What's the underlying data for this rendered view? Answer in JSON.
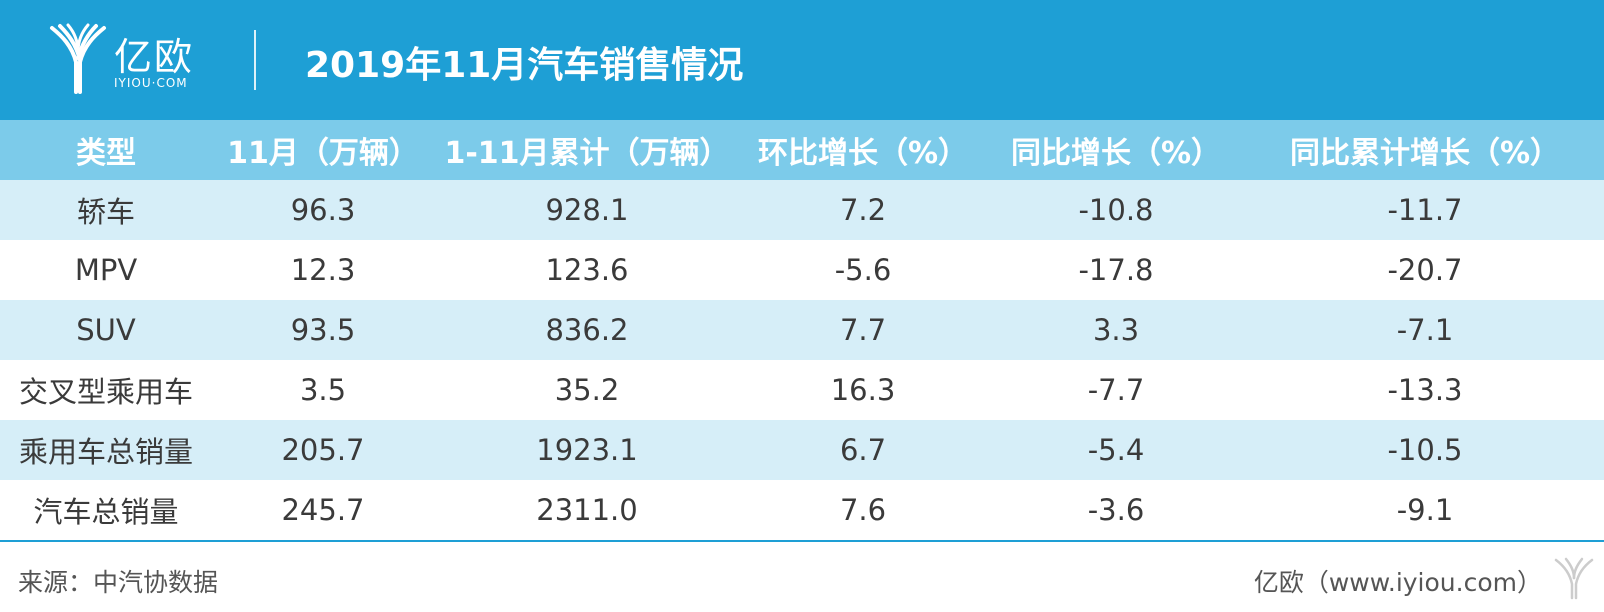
{
  "header": {
    "logo_cn": "亿欧",
    "logo_en": "IYIOU·COM",
    "title": "2019年11月汽车销售情况"
  },
  "table": {
    "columns": [
      "类型",
      "11月（万辆）",
      "1-11月累计（万辆）",
      "环比增长（%）",
      "同比增长（%）",
      "同比累计增长（%）"
    ],
    "rows": [
      [
        "轿车",
        "96.3",
        "928.1",
        "7.2",
        "-10.8",
        "-11.7"
      ],
      [
        "MPV",
        "12.3",
        "123.6",
        "-5.6",
        "-17.8",
        "-20.7"
      ],
      [
        "SUV",
        "93.5",
        "836.2",
        "7.7",
        "3.3",
        "-7.1"
      ],
      [
        "交叉型乘用车",
        "3.5",
        "35.2",
        "16.3",
        "-7.7",
        "-13.3"
      ],
      [
        "乘用车总销量",
        "205.7",
        "1923.1",
        "6.7",
        "-5.4",
        "-10.5"
      ],
      [
        "汽车总销量",
        "245.7",
        "2311.0",
        "7.6",
        "-3.6",
        "-9.1"
      ]
    ]
  },
  "footer": {
    "source": "来源：中汽协数据",
    "credit": "亿欧（www.iyiou.com）"
  },
  "colors": {
    "header_bg": "#1e9fd5",
    "column_header_bg": "#7ccbea",
    "row_shade": "#d6eef8"
  }
}
